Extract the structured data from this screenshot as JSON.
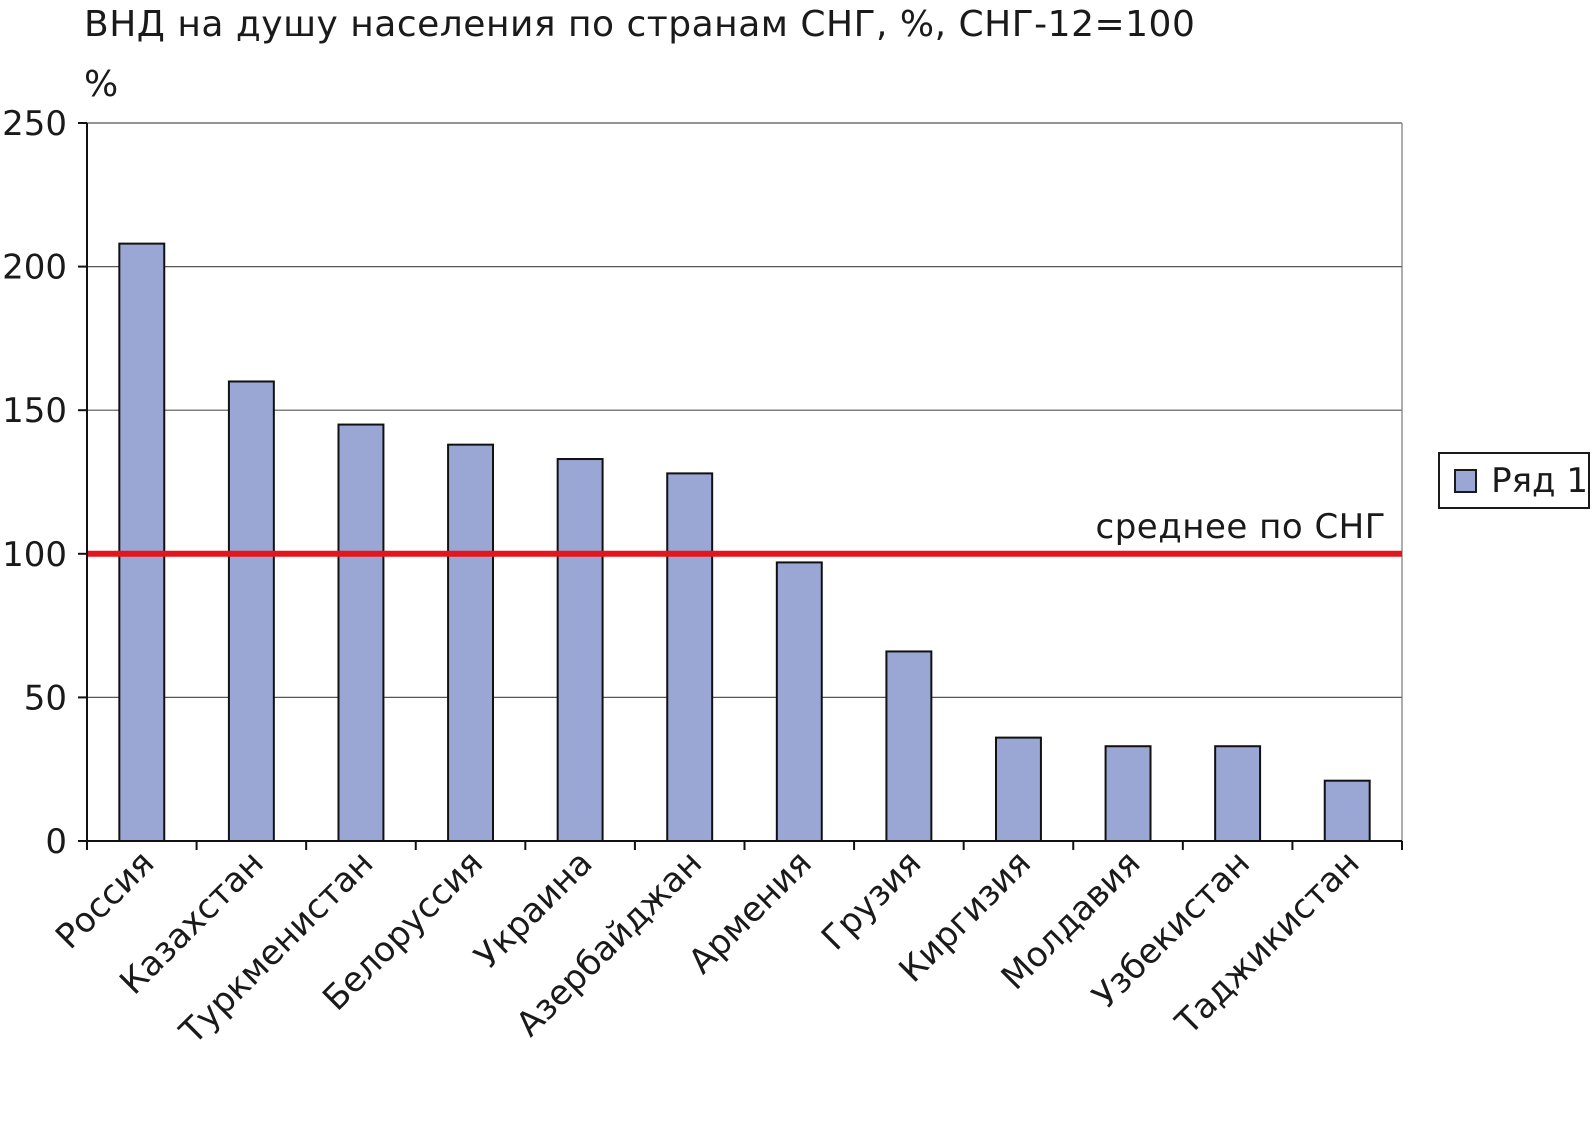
{
  "chart_data": {
    "type": "bar",
    "title": "ВНД на душу населения по странам СНГ, %, СНГ-12=100",
    "ylabel": "%",
    "xlabel": "",
    "ylim": [
      0,
      250
    ],
    "yticks": [
      0,
      50,
      100,
      150,
      200,
      250
    ],
    "grid": true,
    "legend_position": "right",
    "categories": [
      "Россия",
      "Казахстан",
      "Туркменистан",
      "Белоруссия",
      "Украина",
      "Азербайджан",
      "Армения",
      "Грузия",
      "Киргизия",
      "Молдавия",
      "Узбекистан",
      "Таджикистан"
    ],
    "series": [
      {
        "name": "Ряд 1",
        "color": "#9aa6d3",
        "values": [
          208,
          160,
          145,
          138,
          133,
          128,
          97,
          66,
          36,
          33,
          33,
          21
        ]
      }
    ],
    "reference_line": {
      "value": 100,
      "label": "среднее по СНГ",
      "color": "#e3161e"
    }
  }
}
